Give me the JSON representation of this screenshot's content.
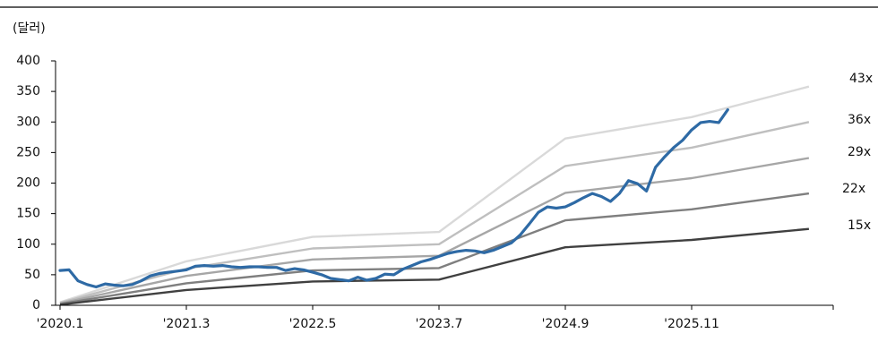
{
  "chart_data": {
    "type": "line",
    "unit_label": "(달러)",
    "y_ticks": [
      "0",
      "50",
      "100",
      "150",
      "200",
      "250",
      "300",
      "350",
      "400"
    ],
    "x_ticks": [
      "'2020.1",
      "'2021.3",
      "'2022.5",
      "'2023.7",
      "'2024.9",
      "'2025.11"
    ],
    "ylim": [
      0,
      400
    ],
    "x_domain_months": [
      "2020-01",
      "2026-12"
    ],
    "grid": false,
    "bands": [
      {
        "label": "43x",
        "color": "#d9d9d9",
        "points": [
          [
            "2020-01",
            5
          ],
          [
            "2021-03",
            72
          ],
          [
            "2022-05",
            112
          ],
          [
            "2023-07",
            120
          ],
          [
            "2024-09",
            273
          ],
          [
            "2025-11",
            308
          ],
          [
            "2026-12",
            358
          ]
        ]
      },
      {
        "label": "36x",
        "color": "#bfbfbf",
        "points": [
          [
            "2020-01",
            4
          ],
          [
            "2021-03",
            60
          ],
          [
            "2022-05",
            93
          ],
          [
            "2023-07",
            100
          ],
          [
            "2024-09",
            228
          ],
          [
            "2025-11",
            258
          ],
          [
            "2026-12",
            300
          ]
        ]
      },
      {
        "label": "29x",
        "color": "#a6a6a6",
        "points": [
          [
            "2020-01",
            3
          ],
          [
            "2021-03",
            48
          ],
          [
            "2022-05",
            75
          ],
          [
            "2023-07",
            81
          ],
          [
            "2024-09",
            184
          ],
          [
            "2025-11",
            208
          ],
          [
            "2026-12",
            241
          ]
        ]
      },
      {
        "label": "22x",
        "color": "#7f7f7f",
        "points": [
          [
            "2020-01",
            2
          ],
          [
            "2021-03",
            36
          ],
          [
            "2022-05",
            57
          ],
          [
            "2023-07",
            61
          ],
          [
            "2024-09",
            139
          ],
          [
            "2025-11",
            157
          ],
          [
            "2026-12",
            183
          ]
        ]
      },
      {
        "label": "15x",
        "color": "#404040",
        "points": [
          [
            "2020-01",
            1
          ],
          [
            "2021-03",
            25
          ],
          [
            "2022-05",
            39
          ],
          [
            "2023-07",
            42
          ],
          [
            "2024-09",
            95
          ],
          [
            "2025-11",
            107
          ],
          [
            "2026-12",
            125
          ]
        ]
      }
    ],
    "price_series": {
      "color": "#2e6aa5",
      "points": [
        [
          "2020-01",
          57
        ],
        [
          "2020-02",
          58
        ],
        [
          "2020-03",
          40
        ],
        [
          "2020-04",
          34
        ],
        [
          "2020-05",
          30
        ],
        [
          "2020-06",
          35
        ],
        [
          "2020-07",
          33
        ],
        [
          "2020-08",
          32
        ],
        [
          "2020-09",
          34
        ],
        [
          "2020-10",
          40
        ],
        [
          "2020-11",
          48
        ],
        [
          "2020-12",
          52
        ],
        [
          "2021-01",
          54
        ],
        [
          "2021-02",
          56
        ],
        [
          "2021-03",
          58
        ],
        [
          "2021-04",
          64
        ],
        [
          "2021-05",
          65
        ],
        [
          "2021-06",
          64
        ],
        [
          "2021-07",
          65
        ],
        [
          "2021-08",
          63
        ],
        [
          "2021-09",
          62
        ],
        [
          "2021-10",
          63
        ],
        [
          "2021-11",
          63
        ],
        [
          "2021-12",
          62
        ],
        [
          "2022-01",
          62
        ],
        [
          "2022-02",
          57
        ],
        [
          "2022-03",
          60
        ],
        [
          "2022-04",
          58
        ],
        [
          "2022-05",
          54
        ],
        [
          "2022-06",
          50
        ],
        [
          "2022-07",
          44
        ],
        [
          "2022-08",
          42
        ],
        [
          "2022-09",
          40
        ],
        [
          "2022-10",
          46
        ],
        [
          "2022-11",
          41
        ],
        [
          "2022-12",
          44
        ],
        [
          "2023-01",
          51
        ],
        [
          "2023-02",
          50
        ],
        [
          "2023-03",
          59
        ],
        [
          "2023-04",
          65
        ],
        [
          "2023-05",
          71
        ],
        [
          "2023-06",
          75
        ],
        [
          "2023-07",
          80
        ],
        [
          "2023-08",
          85
        ],
        [
          "2023-09",
          88
        ],
        [
          "2023-10",
          90
        ],
        [
          "2023-11",
          89
        ],
        [
          "2023-12",
          86
        ],
        [
          "2024-01",
          90
        ],
        [
          "2024-02",
          96
        ],
        [
          "2024-03",
          102
        ],
        [
          "2024-04",
          115
        ],
        [
          "2024-05",
          133
        ],
        [
          "2024-06",
          152
        ],
        [
          "2024-07",
          161
        ],
        [
          "2024-08",
          159
        ],
        [
          "2024-09",
          161
        ],
        [
          "2024-10",
          168
        ],
        [
          "2024-11",
          176
        ],
        [
          "2024-12",
          183
        ],
        [
          "2025-01",
          178
        ],
        [
          "2025-02",
          170
        ],
        [
          "2025-03",
          183
        ],
        [
          "2025-04",
          204
        ],
        [
          "2025-05",
          199
        ],
        [
          "2025-06",
          187
        ],
        [
          "2025-07",
          226
        ],
        [
          "2025-08",
          243
        ],
        [
          "2025-09",
          258
        ],
        [
          "2025-10",
          270
        ],
        [
          "2025-11",
          287
        ],
        [
          "2025-12",
          299
        ],
        [
          "2026-01",
          301
        ],
        [
          "2026-02",
          299
        ],
        [
          "2026-03",
          320
        ]
      ]
    }
  }
}
